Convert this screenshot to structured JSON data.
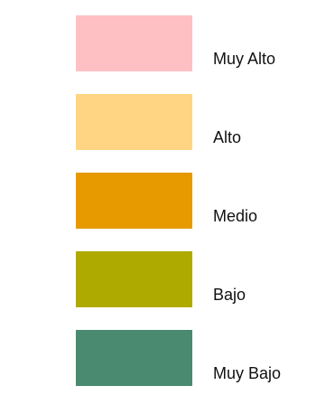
{
  "legend": {
    "items": [
      {
        "label": "Muy Alto",
        "color": "#FFC0C4"
      },
      {
        "label": "Alto",
        "color": "#FFD583"
      },
      {
        "label": "Medio",
        "color": "#E69A00"
      },
      {
        "label": "Bajo",
        "color": "#AFAA00"
      },
      {
        "label": "Muy Bajo",
        "color": "#498A70"
      }
    ]
  }
}
